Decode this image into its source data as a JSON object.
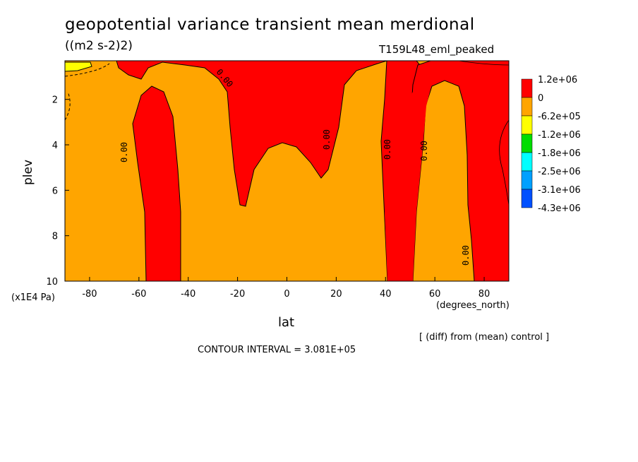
{
  "chart_data": {
    "type": "contour",
    "title": "geopotential variance transient mean merdional",
    "units": "((m2 s-2)2)",
    "run_label": "T159L48_eml_peaked",
    "xlabel": "lat",
    "x_units": "(degrees_north)",
    "ylabel": "plev",
    "y_units": "(x1E4 Pa)",
    "xlim": [
      -90,
      90
    ],
    "ylim": [
      10,
      0.3
    ],
    "x_ticks": [
      "-80",
      "-60",
      "-40",
      "-20",
      "0",
      "20",
      "40",
      "60",
      "80"
    ],
    "y_ticks": [
      "2",
      "4",
      "6",
      "8",
      "10"
    ],
    "contour_labels": [
      "0.00",
      "0.00",
      "0.00",
      "0.00",
      "0.00",
      "0.00"
    ],
    "colorbar": {
      "levels": [
        "1.2e+06",
        "0",
        "-6.2e+05",
        "-1.2e+06",
        "-1.8e+06",
        "-2.5e+06",
        "-3.1e+06",
        "-4.3e+06"
      ],
      "colors": [
        "#ff0000",
        "#ffa500",
        "#ffff00",
        "#00dd00",
        "#00ffff",
        "#00a0ff",
        "#0050ff"
      ]
    },
    "note": "[ (diff) from (mean) control ]",
    "contour_interval": "CONTOUR INTERVAL = 3.081E+05"
  }
}
